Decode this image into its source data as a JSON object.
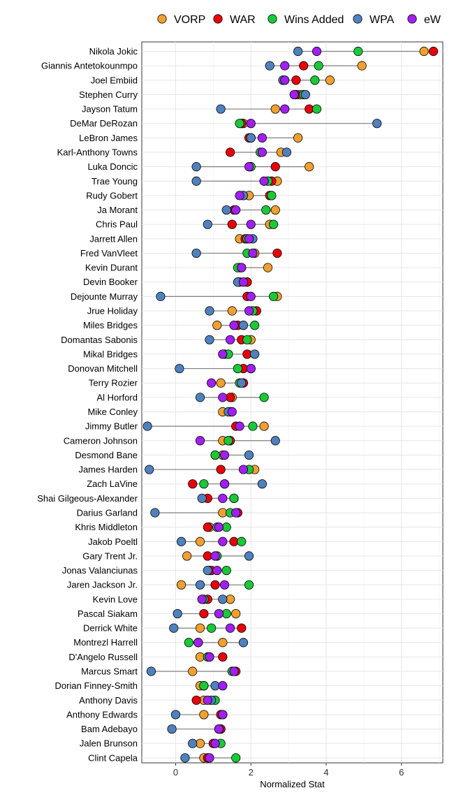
{
  "chart_data": {
    "type": "scatter",
    "xlabel": "Normalized Stat",
    "ylabel": "",
    "xlim": [
      -0.9,
      7.1
    ],
    "xticks": [
      0,
      2,
      4,
      6
    ],
    "grid": true,
    "legend_position": "top",
    "series_order": [
      "VORP",
      "WAR",
      "Wins Added",
      "WPA",
      "eW"
    ],
    "colors": {
      "VORP": "#f0a030",
      "WAR": "#e8000b",
      "Wins Added": "#1ac938",
      "WPA": "#4f81bd",
      "eW": "#a020f0"
    },
    "players": [
      {
        "name": "Nikola Jokic",
        "VORP": 6.6,
        "WAR": 6.85,
        "Wins Added": 4.85,
        "WPA": 3.25,
        "eW": 3.75
      },
      {
        "name": "Giannis Antetokounmpo",
        "VORP": 4.95,
        "WAR": 3.4,
        "Wins Added": 3.8,
        "WPA": 2.5,
        "eW": 2.9
      },
      {
        "name": "Joel Embiid",
        "VORP": 4.1,
        "WAR": 3.2,
        "Wins Added": 3.7,
        "WPA": 2.85,
        "eW": 2.9
      },
      {
        "name": "Stephen Curry",
        "VORP": 3.3,
        "WAR": 3.2,
        "Wins Added": 3.4,
        "WPA": 3.45,
        "eW": 3.15
      },
      {
        "name": "Jayson Tatum",
        "VORP": 2.65,
        "WAR": 3.55,
        "Wins Added": 3.75,
        "WPA": 1.2,
        "eW": 2.9
      },
      {
        "name": "DeMar DeRozan",
        "VORP": 1.8,
        "WAR": 1.75,
        "Wins Added": 1.7,
        "WPA": 5.35,
        "eW": 2.0
      },
      {
        "name": "LeBron James",
        "VORP": 3.25,
        "WAR": 1.95,
        "Wins Added": 2.0,
        "WPA": 2.0,
        "eW": 2.3
      },
      {
        "name": "Karl-Anthony Towns",
        "VORP": 2.8,
        "WAR": 1.45,
        "Wins Added": 2.25,
        "WPA": 2.95,
        "eW": 2.3
      },
      {
        "name": "Luka Doncic",
        "VORP": 3.55,
        "WAR": 2.65,
        "Wins Added": 2.0,
        "WPA": 0.55,
        "eW": 1.95
      },
      {
        "name": "Trae Young",
        "VORP": 2.7,
        "WAR": 2.55,
        "Wins Added": 2.45,
        "WPA": 0.55,
        "eW": 2.35
      },
      {
        "name": "Rudy Gobert",
        "VORP": 1.95,
        "WAR": 2.5,
        "Wins Added": 2.55,
        "WPA": 1.8,
        "eW": 1.7
      },
      {
        "name": "Ja Morant",
        "VORP": 2.65,
        "WAR": 1.55,
        "Wins Added": 2.4,
        "WPA": 1.35,
        "eW": 1.6
      },
      {
        "name": "Chris Paul",
        "VORP": 2.5,
        "WAR": 1.5,
        "Wins Added": 2.6,
        "WPA": 0.85,
        "eW": 2.0
      },
      {
        "name": "Jarrett Allen",
        "VORP": 1.7,
        "WAR": 1.85,
        "Wins Added": 1.9,
        "WPA": 2.05,
        "eW": 1.95
      },
      {
        "name": "Fred VanVleet",
        "VORP": 2.1,
        "WAR": 2.7,
        "Wins Added": 1.9,
        "WPA": 0.55,
        "eW": 2.05
      },
      {
        "name": "Kevin Durant",
        "VORP": 2.45,
        "WAR": 1.7,
        "Wins Added": 1.65,
        "WPA": 1.75,
        "eW": 1.75
      },
      {
        "name": "Devin Booker",
        "VORP": 1.9,
        "WAR": 1.9,
        "Wins Added": 1.7,
        "WPA": 1.65,
        "eW": 1.8
      },
      {
        "name": "Dejounte Murray",
        "VORP": 2.7,
        "WAR": 1.9,
        "Wins Added": 2.6,
        "WPA": -0.4,
        "eW": 2.0
      },
      {
        "name": "Jrue Holiday",
        "VORP": 1.5,
        "WAR": 2.15,
        "Wins Added": 2.05,
        "WPA": 0.9,
        "eW": 1.95
      },
      {
        "name": "Miles Bridges",
        "VORP": 1.1,
        "WAR": 1.65,
        "Wins Added": 2.1,
        "WPA": 1.8,
        "eW": 1.55
      },
      {
        "name": "Domantas Sabonis",
        "VORP": 2.0,
        "WAR": 1.75,
        "Wins Added": 1.9,
        "WPA": 0.9,
        "eW": 1.45
      },
      {
        "name": "Mikal Bridges",
        "VORP": 1.3,
        "WAR": 1.9,
        "Wins Added": 1.4,
        "WPA": 2.1,
        "eW": 1.25
      },
      {
        "name": "Donovan Mitchell",
        "VORP": 2.0,
        "WAR": 1.8,
        "Wins Added": 1.65,
        "WPA": 0.1,
        "eW": 2.0
      },
      {
        "name": "Terry Rozier",
        "VORP": 1.2,
        "WAR": 1.8,
        "Wins Added": 1.7,
        "WPA": 1.75,
        "eW": 0.95
      },
      {
        "name": "Al Horford",
        "VORP": 1.5,
        "WAR": 1.45,
        "Wins Added": 2.35,
        "WPA": 0.65,
        "eW": 1.25
      },
      {
        "name": "Mike Conley",
        "VORP": 1.25,
        "WAR": 1.45,
        "Wins Added": 1.45,
        "WPA": 1.4,
        "eW": 1.5
      },
      {
        "name": "Jimmy Butler",
        "VORP": 2.35,
        "WAR": 1.6,
        "Wins Added": 2.05,
        "WPA": -0.75,
        "eW": 1.7
      },
      {
        "name": "Cameron Johnson",
        "VORP": 1.25,
        "WAR": 1.45,
        "Wins Added": 1.4,
        "WPA": 2.65,
        "eW": 0.65
      },
      {
        "name": "Desmond Bane",
        "VORP": 1.25,
        "WAR": 1.05,
        "Wins Added": 1.05,
        "WPA": 1.95,
        "eW": 1.3
      },
      {
        "name": "James Harden",
        "VORP": 2.1,
        "WAR": 1.2,
        "Wins Added": 1.95,
        "WPA": -0.7,
        "eW": 1.8
      },
      {
        "name": "Zach LaVine",
        "VORP": 1.3,
        "WAR": 0.45,
        "Wins Added": 0.75,
        "WPA": 2.3,
        "eW": 1.3
      },
      {
        "name": "Shai Gilgeous-Alexander",
        "VORP": 1.55,
        "WAR": 0.85,
        "Wins Added": 1.55,
        "WPA": 0.7,
        "eW": 1.25
      },
      {
        "name": "Darius Garland",
        "VORP": 1.25,
        "WAR": 1.65,
        "Wins Added": 1.45,
        "WPA": -0.55,
        "eW": 1.6
      },
      {
        "name": "Khris Middleton",
        "VORP": 0.9,
        "WAR": 0.85,
        "Wins Added": 1.35,
        "WPA": 1.1,
        "eW": 1.15
      },
      {
        "name": "Jakob Poeltl",
        "VORP": 0.65,
        "WAR": 1.55,
        "Wins Added": 1.75,
        "WPA": 0.15,
        "eW": 1.25
      },
      {
        "name": "Gary Trent Jr.",
        "VORP": 0.3,
        "WAR": 0.85,
        "Wins Added": 1.1,
        "WPA": 1.95,
        "eW": 1.05
      },
      {
        "name": "Jonas Valanciunas",
        "VORP": 0.9,
        "WAR": 0.95,
        "Wins Added": 1.35,
        "WPA": 0.85,
        "eW": 1.1
      },
      {
        "name": "Jaren Jackson Jr.",
        "VORP": 0.15,
        "WAR": 1.05,
        "Wins Added": 1.95,
        "WPA": 0.65,
        "eW": 1.3
      },
      {
        "name": "Kevin Love",
        "VORP": 1.45,
        "WAR": 0.85,
        "Wins Added": 0.75,
        "WPA": 1.25,
        "eW": 0.7
      },
      {
        "name": "Pascal Siakam",
        "VORP": 1.6,
        "WAR": 0.75,
        "Wins Added": 1.35,
        "WPA": 0.05,
        "eW": 1.15
      },
      {
        "name": "Derrick White",
        "VORP": 0.65,
        "WAR": 1.75,
        "Wins Added": 0.95,
        "WPA": -0.05,
        "eW": 1.45
      },
      {
        "name": "Montrezl Harrell",
        "VORP": 1.25,
        "WAR": 0.6,
        "Wins Added": 0.35,
        "WPA": 1.8,
        "eW": 0.6
      },
      {
        "name": "D'Angelo Russell",
        "VORP": 0.65,
        "WAR": 1.25,
        "Wins Added": 0.85,
        "WPA": 0.9,
        "eW": 0.9
      },
      {
        "name": "Marcus Smart",
        "VORP": 0.45,
        "WAR": 1.6,
        "Wins Added": 1.5,
        "WPA": -0.65,
        "eW": 1.55
      },
      {
        "name": "Dorian Finney-Smith",
        "VORP": 0.65,
        "WAR": 0.75,
        "Wins Added": 0.75,
        "WPA": 1.05,
        "eW": 1.25
      },
      {
        "name": "Anthony Davis",
        "VORP": 0.75,
        "WAR": 0.55,
        "Wins Added": 1.05,
        "WPA": 0.95,
        "eW": 0.85
      },
      {
        "name": "Anthony Edwards",
        "VORP": 0.75,
        "WAR": 1.2,
        "Wins Added": 1.25,
        "WPA": 0.0,
        "eW": 1.25
      },
      {
        "name": "Bam Adebayo",
        "VORP": 1.2,
        "WAR": 1.2,
        "Wins Added": 1.15,
        "WPA": -0.1,
        "eW": 1.15
      },
      {
        "name": "Jalen Brunson",
        "VORP": 0.65,
        "WAR": 1.0,
        "Wins Added": 1.2,
        "WPA": 0.45,
        "eW": 1.05
      },
      {
        "name": "Clint Capela",
        "VORP": 0.75,
        "WAR": 0.85,
        "Wins Added": 1.6,
        "WPA": 0.25,
        "eW": 0.9
      }
    ]
  }
}
